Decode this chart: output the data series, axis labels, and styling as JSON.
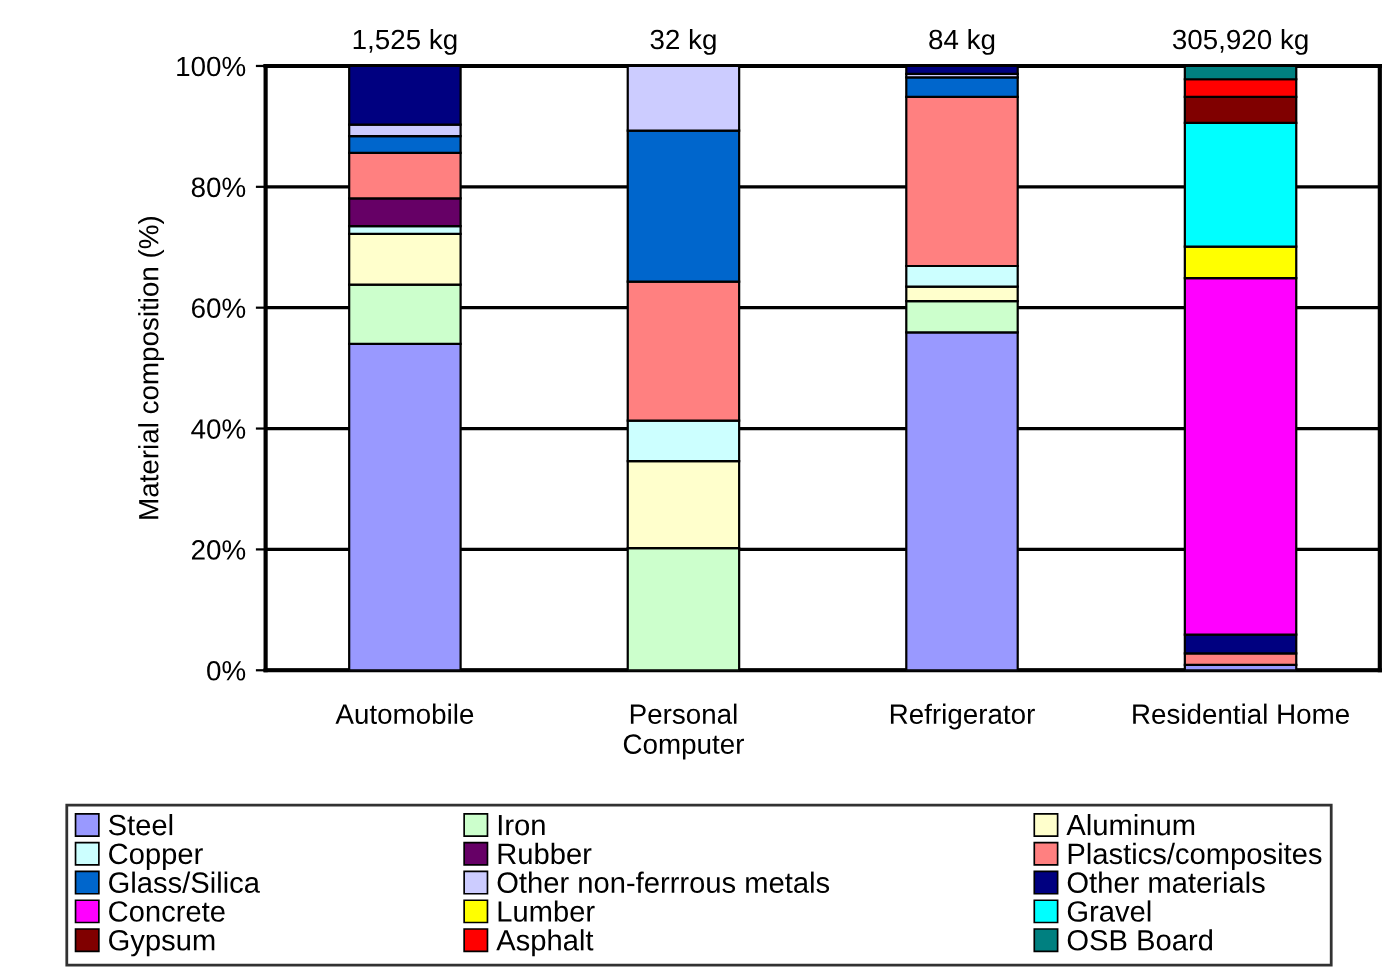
{
  "chart_data": {
    "type": "bar",
    "stacked": true,
    "ylabel": "Material composition (%)",
    "categories": [
      "Automobile",
      "Personal\nComputer",
      "Refrigerator",
      "Residential Home"
    ],
    "series": [
      {
        "name": "Steel",
        "color": "#9999ff",
        "values": [
          54.0,
          0,
          55.9,
          0.9
        ]
      },
      {
        "name": "Iron",
        "color": "#ccffcc",
        "values": [
          9.8,
          20.2,
          5.2,
          0
        ]
      },
      {
        "name": "Aluminum",
        "color": "#ffffcc",
        "values": [
          8.4,
          14.4,
          2.4,
          0
        ]
      },
      {
        "name": "Copper",
        "color": "#ccffff",
        "values": [
          1.3,
          6.7,
          3.4,
          0
        ]
      },
      {
        "name": "Rubber",
        "color": "#660066",
        "values": [
          4.6,
          0,
          0,
          0
        ]
      },
      {
        "name": "Plastics/composites",
        "color": "#ff8080",
        "values": [
          7.5,
          23.0,
          28.0,
          1.9
        ]
      },
      {
        "name": "Glass/Silica",
        "color": "#0066cc",
        "values": [
          2.8,
          25.0,
          3.2,
          0
        ]
      },
      {
        "name": "Other non-ferrrous metals",
        "color": "#ccccff",
        "values": [
          1.9,
          10.7,
          0.6,
          0
        ]
      },
      {
        "name": "Other materials",
        "color": "#000080",
        "values": [
          9.7,
          0,
          1.3,
          3.1
        ]
      },
      {
        "name": "Concrete",
        "color": "#ff00ff",
        "values": [
          0,
          0,
          0,
          59.0
        ]
      },
      {
        "name": "Lumber",
        "color": "#ffff00",
        "values": [
          0,
          0,
          0,
          5.2
        ]
      },
      {
        "name": "Gravel",
        "color": "#00ffff",
        "values": [
          0,
          0,
          0,
          20.5
        ]
      },
      {
        "name": "Gypsum",
        "color": "#800000",
        "values": [
          0,
          0,
          0,
          4.3
        ]
      },
      {
        "name": "Asphalt",
        "color": "#ff0000",
        "values": [
          0,
          0,
          0,
          2.9
        ]
      },
      {
        "name": "OSB Board",
        "color": "#008080",
        "values": [
          0,
          0,
          0,
          2.2
        ]
      }
    ],
    "ylim": [
      0,
      100
    ],
    "yticks": [
      {
        "value": 0,
        "label": "0%"
      },
      {
        "value": 20,
        "label": "20%"
      },
      {
        "value": 40,
        "label": "40%"
      },
      {
        "value": 60,
        "label": "60%"
      },
      {
        "value": 80,
        "label": "80%"
      },
      {
        "value": 100,
        "label": "100%"
      }
    ],
    "annotations": [
      {
        "text": "1,525 kg",
        "x": "Automobile",
        "y": 100
      },
      {
        "text": "32 kg",
        "x": "Personal\nComputer",
        "y": 100
      },
      {
        "text": "84 kg",
        "x": "Refrigerator",
        "y": 100
      },
      {
        "text": "305,920 kg",
        "x": "Residential Home",
        "y": 100
      }
    ],
    "grid": "y",
    "legend": "bottom"
  }
}
